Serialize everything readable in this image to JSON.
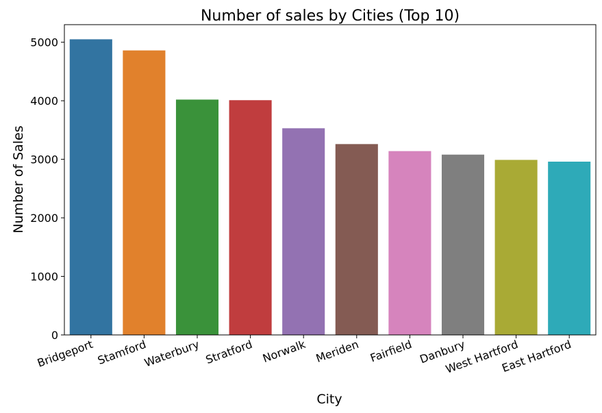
{
  "chart_data": {
    "type": "bar",
    "title": "Number of sales by Cities (Top 10)",
    "xlabel": "City",
    "ylabel": "Number of Sales",
    "categories": [
      "Bridgeport",
      "Stamford",
      "Waterbury",
      "Stratford",
      "Norwalk",
      "Meriden",
      "Fairfield",
      "Danbury",
      "West Hartford",
      "East Hartford"
    ],
    "values": [
      5050,
      4860,
      4020,
      4010,
      3530,
      3260,
      3140,
      3080,
      2990,
      2960
    ],
    "colors": [
      "#3274a1",
      "#e1812c",
      "#3a923a",
      "#c03d3e",
      "#9372b2",
      "#845b53",
      "#d684bd",
      "#7f7f7f",
      "#a9aa35",
      "#2eaab8"
    ],
    "ylim": [
      0,
      5300
    ],
    "yticks": [
      0,
      1000,
      2000,
      3000,
      4000,
      5000
    ],
    "grid": false,
    "legend": "none"
  }
}
